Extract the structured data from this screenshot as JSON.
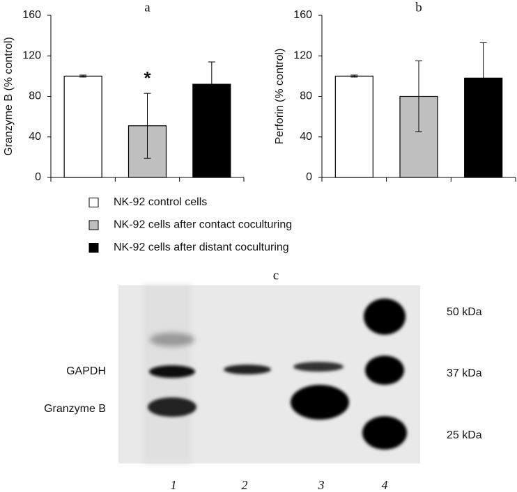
{
  "chart_data": [
    {
      "type": "bar",
      "title": "a",
      "ylabel": "Granzyme B (% control)",
      "categories": [
        null,
        null,
        null
      ],
      "values": [
        100,
        51,
        92
      ],
      "errors": [
        1,
        32,
        22
      ],
      "colors": [
        "#ffffff",
        "#bfbfbf",
        "#000000"
      ],
      "ylim": [
        0,
        160
      ],
      "yticks": [
        0,
        40,
        80,
        120,
        160
      ],
      "annotations": [
        {
          "text": "*",
          "index": 1
        }
      ]
    },
    {
      "type": "bar",
      "title": "b",
      "ylabel": "Perforin (% control)",
      "categories": [
        null,
        null,
        null
      ],
      "values": [
        100,
        80,
        98
      ],
      "errors": [
        1,
        35,
        35
      ],
      "colors": [
        "#ffffff",
        "#bfbfbf",
        "#000000"
      ],
      "ylim": [
        0,
        160
      ],
      "yticks": [
        0,
        40,
        80,
        120,
        160
      ],
      "annotations": []
    }
  ],
  "legend": [
    {
      "label": "NK-92 control cells",
      "color": "#ffffff"
    },
    {
      "label": "NK-92 cells after contact coculturing",
      "color": "#bfbfbf"
    },
    {
      "label": "NK-92 cells after distant coculturing",
      "color": "#000000"
    }
  ],
  "blot": {
    "title": "c",
    "bands": [
      "GAPDH",
      "Granzyme B"
    ],
    "markers": [
      "50 kDa",
      "37 kDa",
      "25 kDa"
    ],
    "lanes": [
      "1",
      "2",
      "3",
      "4"
    ]
  }
}
